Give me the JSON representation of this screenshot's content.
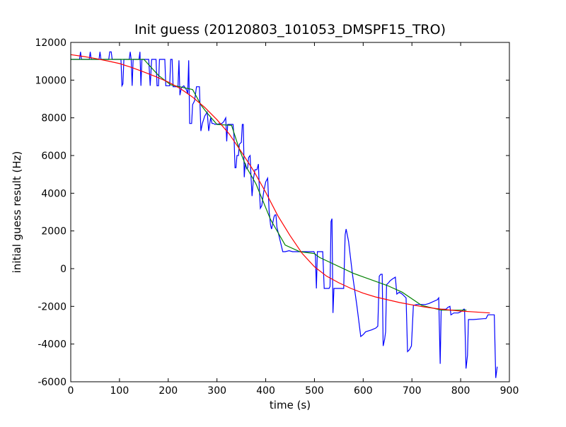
{
  "chart_data": {
    "type": "line",
    "title": "Init guess (20120803_101053_DMSPF15_TRO)",
    "xlabel": "time (s)",
    "ylabel": "initial guess result (Hz)",
    "xlim": [
      0,
      900
    ],
    "ylim": [
      -6000,
      12000
    ],
    "xticks": [
      0,
      100,
      200,
      300,
      400,
      500,
      600,
      700,
      800,
      900
    ],
    "yticks": [
      -6000,
      -4000,
      -2000,
      0,
      2000,
      4000,
      6000,
      8000,
      10000,
      12000
    ],
    "grid": false,
    "legend": "none",
    "series": [
      {
        "color": "#0000ff",
        "points": [
          [
            0,
            11100
          ],
          [
            18,
            11100
          ],
          [
            20,
            11500
          ],
          [
            22,
            11100
          ],
          [
            38,
            11100
          ],
          [
            40,
            11500
          ],
          [
            42,
            11100
          ],
          [
            58,
            11100
          ],
          [
            60,
            11500
          ],
          [
            62,
            11100
          ],
          [
            78,
            11100
          ],
          [
            80,
            11500
          ],
          [
            83,
            11500
          ],
          [
            85,
            11100
          ],
          [
            103,
            11100
          ],
          [
            105,
            9700
          ],
          [
            107,
            9800
          ],
          [
            109,
            11100
          ],
          [
            120,
            11100
          ],
          [
            122,
            11500
          ],
          [
            124,
            11100
          ],
          [
            126,
            9700
          ],
          [
            128,
            11100
          ],
          [
            140,
            11100
          ],
          [
            142,
            11500
          ],
          [
            144,
            9700
          ],
          [
            146,
            11100
          ],
          [
            160,
            11100
          ],
          [
            163,
            9700
          ],
          [
            166,
            11100
          ],
          [
            175,
            11100
          ],
          [
            177,
            9700
          ],
          [
            180,
            9700
          ],
          [
            182,
            11100
          ],
          [
            193,
            11100
          ],
          [
            195,
            9700
          ],
          [
            203,
            9700
          ],
          [
            205,
            11100
          ],
          [
            208,
            11100
          ],
          [
            210,
            9650
          ],
          [
            220,
            9650
          ],
          [
            222,
            11050
          ],
          [
            224,
            9200
          ],
          [
            227,
            9600
          ],
          [
            232,
            9700
          ],
          [
            237,
            9500
          ],
          [
            240,
            9300
          ],
          [
            242,
            11050
          ],
          [
            244,
            7700
          ],
          [
            248,
            7700
          ],
          [
            250,
            8700
          ],
          [
            254,
            8900
          ],
          [
            258,
            9650
          ],
          [
            264,
            9650
          ],
          [
            267,
            7300
          ],
          [
            270,
            7700
          ],
          [
            275,
            8100
          ],
          [
            280,
            8300
          ],
          [
            283,
            7300
          ],
          [
            287,
            8000
          ],
          [
            290,
            7700
          ],
          [
            293,
            7700
          ],
          [
            296,
            7650
          ],
          [
            310,
            7700
          ],
          [
            314,
            7800
          ],
          [
            318,
            8000
          ],
          [
            320,
            6750
          ],
          [
            322,
            7650
          ],
          [
            333,
            7650
          ],
          [
            335,
            7000
          ],
          [
            337,
            5350
          ],
          [
            339,
            5350
          ],
          [
            341,
            6000
          ],
          [
            344,
            6000
          ],
          [
            346,
            6600
          ],
          [
            350,
            6700
          ],
          [
            352,
            7650
          ],
          [
            354,
            7650
          ],
          [
            356,
            4850
          ],
          [
            358,
            5600
          ],
          [
            361,
            5300
          ],
          [
            363,
            5350
          ],
          [
            365,
            5900
          ],
          [
            368,
            6000
          ],
          [
            370,
            4800
          ],
          [
            372,
            3850
          ],
          [
            375,
            4800
          ],
          [
            378,
            5250
          ],
          [
            382,
            5250
          ],
          [
            385,
            5550
          ],
          [
            387,
            4200
          ],
          [
            389,
            3200
          ],
          [
            392,
            3350
          ],
          [
            396,
            4100
          ],
          [
            400,
            4600
          ],
          [
            404,
            4800
          ],
          [
            407,
            3050
          ],
          [
            410,
            2300
          ],
          [
            412,
            2100
          ],
          [
            417,
            2750
          ],
          [
            419,
            2850
          ],
          [
            421,
            2850
          ],
          [
            423,
            2200
          ],
          [
            435,
            900
          ],
          [
            440,
            900
          ],
          [
            448,
            950
          ],
          [
            455,
            900
          ],
          [
            470,
            900
          ],
          [
            496,
            900
          ],
          [
            499,
            900
          ],
          [
            502,
            700
          ],
          [
            504,
            -1050
          ],
          [
            506,
            900
          ],
          [
            517,
            900
          ],
          [
            520,
            -1050
          ],
          [
            525,
            -1050
          ],
          [
            530,
            -1050
          ],
          [
            532,
            -950
          ],
          [
            534,
            2500
          ],
          [
            536,
            2650
          ],
          [
            538,
            -2350
          ],
          [
            540,
            -1050
          ],
          [
            560,
            -1050
          ],
          [
            563,
            1800
          ],
          [
            565,
            2100
          ],
          [
            570,
            1450
          ],
          [
            578,
            -300
          ],
          [
            587,
            -1950
          ],
          [
            595,
            -3600
          ],
          [
            600,
            -3500
          ],
          [
            605,
            -3350
          ],
          [
            617,
            -3250
          ],
          [
            626,
            -3150
          ],
          [
            630,
            -3050
          ],
          [
            633,
            -400
          ],
          [
            636,
            -300
          ],
          [
            639,
            -300
          ],
          [
            641,
            -4100
          ],
          [
            644,
            -3750
          ],
          [
            646,
            -3350
          ],
          [
            648,
            -850
          ],
          [
            652,
            -750
          ],
          [
            655,
            -650
          ],
          [
            660,
            -550
          ],
          [
            666,
            -450
          ],
          [
            669,
            -1350
          ],
          [
            674,
            -1250
          ],
          [
            680,
            -1350
          ],
          [
            688,
            -1550
          ],
          [
            691,
            -4400
          ],
          [
            695,
            -4300
          ],
          [
            699,
            -4100
          ],
          [
            703,
            -1950
          ],
          [
            710,
            -1900
          ],
          [
            728,
            -1900
          ],
          [
            735,
            -1850
          ],
          [
            752,
            -1650
          ],
          [
            755,
            -1550
          ],
          [
            758,
            -5050
          ],
          [
            760,
            -2200
          ],
          [
            763,
            -2150
          ],
          [
            770,
            -2150
          ],
          [
            774,
            -2050
          ],
          [
            778,
            -2000
          ],
          [
            780,
            -2450
          ],
          [
            786,
            -2350
          ],
          [
            795,
            -2350
          ],
          [
            803,
            -2250
          ],
          [
            806,
            -2150
          ],
          [
            808,
            -2150
          ],
          [
            811,
            -5300
          ],
          [
            814,
            -4600
          ],
          [
            816,
            -2700
          ],
          [
            826,
            -2700
          ],
          [
            848,
            -2650
          ],
          [
            852,
            -2650
          ],
          [
            856,
            -2450
          ],
          [
            866,
            -2450
          ],
          [
            869,
            -2450
          ],
          [
            872,
            -5800
          ],
          [
            875,
            -5200
          ]
        ]
      },
      {
        "color": "#008000",
        "points": [
          [
            0,
            11100
          ],
          [
            150,
            11100
          ],
          [
            180,
            10250
          ],
          [
            205,
            9750
          ],
          [
            250,
            9500
          ],
          [
            268,
            8650
          ],
          [
            280,
            8250
          ],
          [
            300,
            7650
          ],
          [
            330,
            7600
          ],
          [
            345,
            6400
          ],
          [
            360,
            5400
          ],
          [
            380,
            4500
          ],
          [
            410,
            2600
          ],
          [
            440,
            1250
          ],
          [
            470,
            900
          ],
          [
            500,
            800
          ],
          [
            510,
            600
          ],
          [
            580,
            -250
          ],
          [
            650,
            -900
          ],
          [
            680,
            -1250
          ],
          [
            720,
            -1950
          ],
          [
            760,
            -2200
          ],
          [
            812,
            -2200
          ]
        ]
      },
      {
        "color": "#ff0000",
        "points": [
          [
            0,
            11350
          ],
          [
            25,
            11260
          ],
          [
            50,
            11150
          ],
          [
            75,
            11020
          ],
          [
            100,
            10880
          ],
          [
            125,
            10670
          ],
          [
            150,
            10430
          ],
          [
            175,
            10180
          ],
          [
            200,
            9900
          ],
          [
            225,
            9550
          ],
          [
            250,
            9100
          ],
          [
            275,
            8550
          ],
          [
            300,
            7900
          ],
          [
            325,
            7150
          ],
          [
            350,
            6200
          ],
          [
            375,
            5200
          ],
          [
            400,
            4050
          ],
          [
            425,
            2800
          ],
          [
            450,
            1750
          ],
          [
            475,
            800
          ],
          [
            500,
            100
          ],
          [
            525,
            -400
          ],
          [
            550,
            -750
          ],
          [
            575,
            -1050
          ],
          [
            600,
            -1300
          ],
          [
            625,
            -1500
          ],
          [
            650,
            -1650
          ],
          [
            675,
            -1800
          ],
          [
            700,
            -1920
          ],
          [
            725,
            -2030
          ],
          [
            750,
            -2120
          ],
          [
            775,
            -2190
          ],
          [
            800,
            -2250
          ],
          [
            825,
            -2290
          ],
          [
            860,
            -2350
          ]
        ]
      }
    ]
  }
}
